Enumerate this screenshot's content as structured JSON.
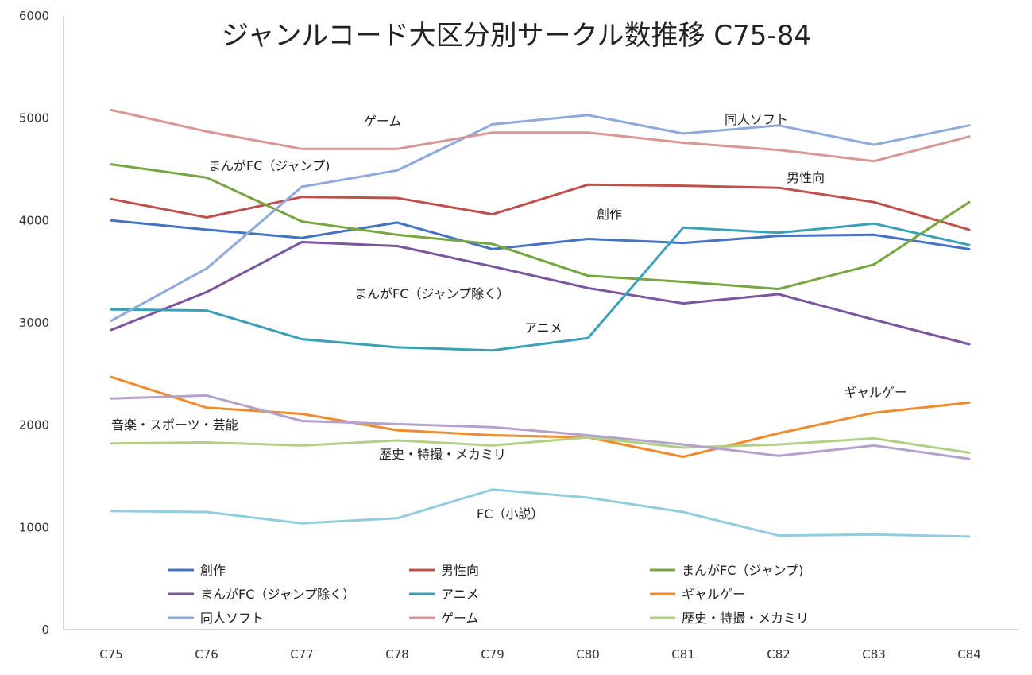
{
  "chart_data": {
    "type": "line",
    "title": "ジャンルコード大区分別サークル数推移 C75-84",
    "xlabel": "",
    "ylabel": "",
    "categories": [
      "C75",
      "C76",
      "C77",
      "C78",
      "C79",
      "C80",
      "C81",
      "C82",
      "C83",
      "C84"
    ],
    "ylim": [
      0,
      6000
    ],
    "yticks": [
      0,
      1000,
      2000,
      3000,
      4000,
      5000,
      6000
    ],
    "grid": false,
    "legend_position": "bottom",
    "series": [
      {
        "name": "創作",
        "color": "#4472c4",
        "values": [
          4000,
          3910,
          3830,
          3980,
          3720,
          3820,
          3780,
          3850,
          3860,
          3720
        ]
      },
      {
        "name": "男性向",
        "color": "#c0504d",
        "values": [
          4210,
          4030,
          4230,
          4220,
          4060,
          4350,
          4340,
          4320,
          4180,
          3910
        ]
      },
      {
        "name": "まんがFC（ジャンプ）",
        "color": "#77a640",
        "values": [
          4550,
          4420,
          3990,
          3860,
          3770,
          3460,
          3400,
          3330,
          3570,
          4180
        ]
      },
      {
        "name": "まんがFC（ジャンプ除く）",
        "color": "#7b559f",
        "values": [
          2930,
          3300,
          3790,
          3750,
          3550,
          3340,
          3190,
          3280,
          3030,
          2790
        ]
      },
      {
        "name": "アニメ",
        "color": "#3aa0b8",
        "values": [
          3130,
          3120,
          2840,
          2760,
          2730,
          2850,
          3930,
          3880,
          3970,
          3760
        ]
      },
      {
        "name": "ギャルゲー",
        "color": "#ef8b2c",
        "values": [
          2470,
          2170,
          2110,
          1950,
          1900,
          1880,
          1690,
          1920,
          2120,
          2220
        ]
      },
      {
        "name": "同人ソフト",
        "color": "#8fa9dc",
        "values": [
          3020,
          3530,
          4330,
          4490,
          4940,
          5030,
          4850,
          4930,
          4740,
          4930
        ]
      },
      {
        "name": "ゲーム",
        "color": "#d99694",
        "values": [
          5080,
          4870,
          4700,
          4700,
          4860,
          4860,
          4760,
          4690,
          4580,
          4820
        ]
      },
      {
        "name": "歴史・特撮・メカミリ",
        "color": "#b3cf85",
        "values": [
          1820,
          1830,
          1800,
          1850,
          1800,
          1880,
          1780,
          1810,
          1870,
          1730
        ]
      },
      {
        "name": "音楽・スポーツ・芸能",
        "color": "#b4a2cc",
        "values": [
          2260,
          2290,
          2040,
          2010,
          1980,
          1900,
          1810,
          1700,
          1800,
          1670
        ]
      },
      {
        "name": "FC（小説）",
        "color": "#92cddc",
        "values": [
          1160,
          1150,
          1040,
          1090,
          1370,
          1290,
          1150,
          920,
          930,
          910
        ]
      }
    ],
    "annotations": [
      "ゲーム",
      "同人ソフト",
      "まんがFC（ジャンプ)",
      "男性向",
      "創作",
      "まんがFC（ジャンプ除く）",
      "アニメ",
      "ギャルゲー",
      "音楽・スポーツ・芸能",
      "歴史・特撮・メカミリ",
      "FC（小説）"
    ],
    "legend": [
      "創作",
      "男性向",
      "まんがFC（ジャンプ)",
      "まんがFC（ジャンプ除く）",
      "アニメ",
      "ギャルゲー",
      "同人ソフト",
      "ゲーム",
      "歴史・特撮・メカミリ"
    ]
  }
}
